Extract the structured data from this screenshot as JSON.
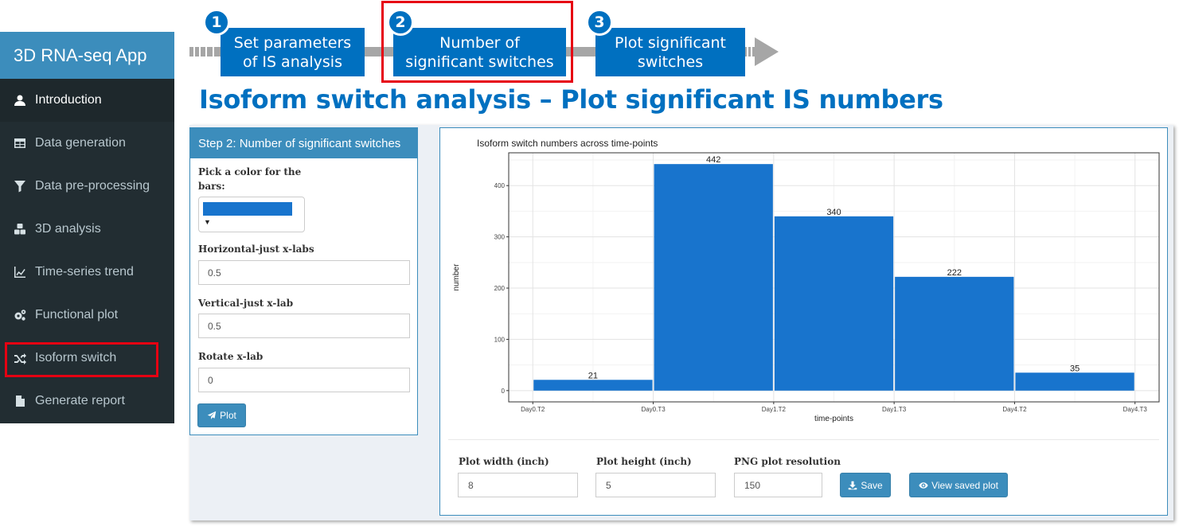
{
  "sidebar": {
    "app_title": "3D RNA-seq App",
    "items": [
      {
        "label": "Introduction",
        "icon": "user-icon"
      },
      {
        "label": "Data generation",
        "icon": "table-icon"
      },
      {
        "label": "Data pre-processing",
        "icon": "filter-icon"
      },
      {
        "label": "3D analysis",
        "icon": "cubes-icon"
      },
      {
        "label": "Time-series trend",
        "icon": "line-chart-icon"
      },
      {
        "label": "Functional plot",
        "icon": "gears-icon"
      },
      {
        "label": "Isoform switch",
        "icon": "random-icon"
      },
      {
        "label": "Generate report",
        "icon": "file-icon"
      }
    ],
    "active_item": "Introduction",
    "highlighted_item": "Isoform switch"
  },
  "steps": [
    {
      "number": "1",
      "line1": "Set parameters",
      "line2": "of IS analysis"
    },
    {
      "number": "2",
      "line1": "Number of",
      "line2": "significant switches"
    },
    {
      "number": "3",
      "line1": "Plot significant",
      "line2": "switches"
    }
  ],
  "heading": "Isoform switch analysis – Plot significant IS numbers",
  "step_panel": {
    "title": "Step 2: Number of significant switches",
    "color_label_line1": "Pick a color for the",
    "color_label_line2": "bars:",
    "bar_color": "#1874cd",
    "hjust_label": "Horizontal-just x-labs",
    "hjust_value": "0.5",
    "vjust_label": "Vertical-just x-lab",
    "vjust_value": "0.5",
    "rotate_label": "Rotate x-lab",
    "rotate_value": "0",
    "plot_button": "Plot"
  },
  "chart_data": {
    "type": "bar",
    "title": "Isoform switch numbers across time-points",
    "xlabel": "time-points",
    "ylabel": "number",
    "x_ticks": [
      "Day0.T2",
      "Day0.T3",
      "Day1.T2",
      "Day1.T3",
      "Day4.T2",
      "Day4.T3"
    ],
    "bars": [
      {
        "x_start": 0,
        "x_end": 1,
        "value": 21
      },
      {
        "x_start": 1,
        "x_end": 2,
        "value": 442
      },
      {
        "x_start": 2,
        "x_end": 3,
        "value": 340
      },
      {
        "x_start": 3,
        "x_end": 4,
        "value": 222
      },
      {
        "x_start": 4,
        "x_end": 5,
        "value": 35
      }
    ],
    "y_ticks": [
      0,
      100,
      200,
      300,
      400
    ],
    "ylim": [
      -22,
      464
    ],
    "bar_color": "#1874cd",
    "grid": true
  },
  "output_controls": {
    "width_label": "Plot width (inch)",
    "width_value": "8",
    "height_label": "Plot height (inch)",
    "height_value": "5",
    "res_label": "PNG plot resolution",
    "res_value": "150",
    "save_button": "Save",
    "view_button": "View saved plot"
  },
  "colors": {
    "accent": "#3c8dbc",
    "sidebar_bg": "#222d32",
    "step_blue": "#0070c0",
    "highlight_red": "#e60012"
  }
}
